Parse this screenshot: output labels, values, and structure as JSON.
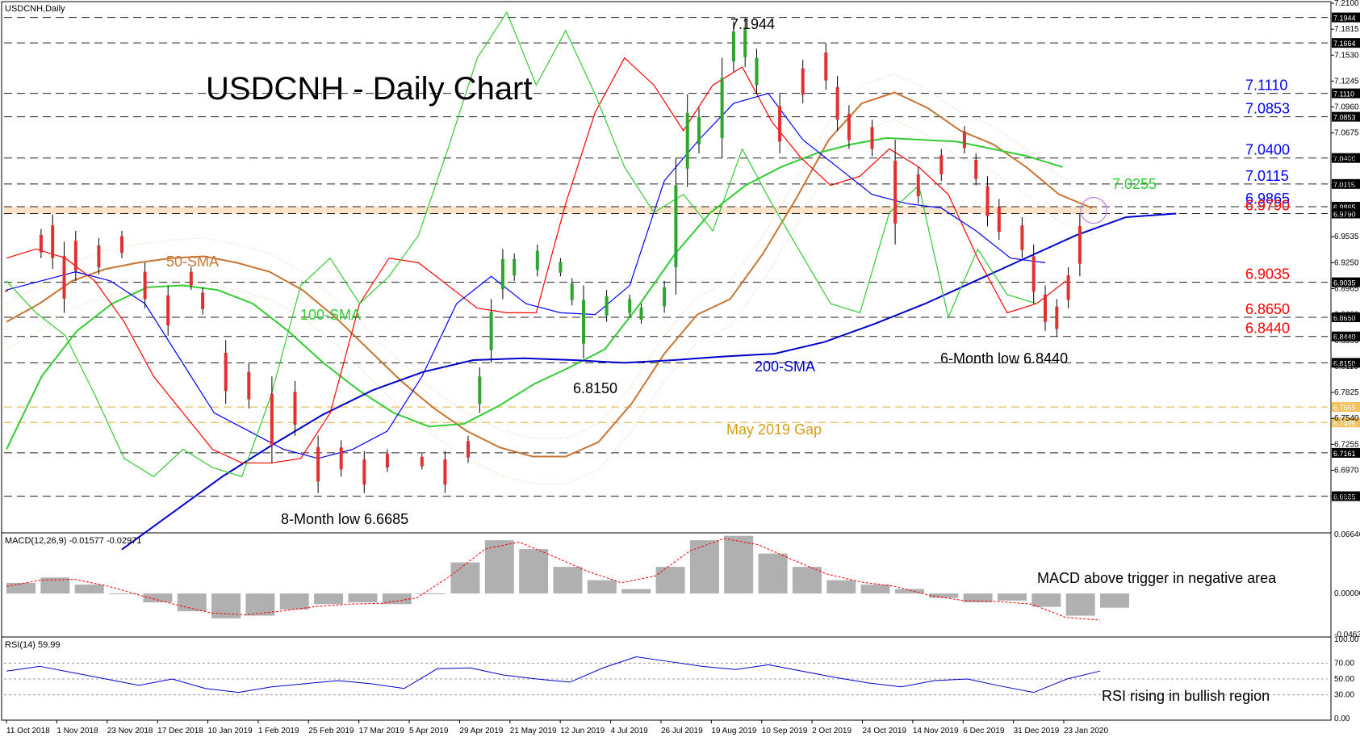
{
  "header": {
    "symbol": "USDCNH,Daily"
  },
  "chart_data": {
    "type": "candlestick",
    "title": "USDCNH - Daily Chart",
    "ylim": [
      6.63,
      7.21
    ],
    "y_ticks": [
      "7.2100",
      "7.1815",
      "7.1530",
      "7.1245",
      "7.0960",
      "7.0675",
      "7.0390",
      "7.0105",
      "6.9820",
      "6.9535",
      "6.9250",
      "6.8965",
      "6.8680",
      "6.8395",
      "6.8110",
      "6.7825",
      "6.7540",
      "6.7255",
      "6.6970",
      "6.6685"
    ],
    "x_ticks": [
      "11 Oct 2018",
      "1 Nov 2018",
      "23 Nov 2018",
      "17 Dec 2018",
      "10 Jan 2019",
      "1 Feb 2019",
      "25 Feb 2019",
      "17 Mar 2019",
      "5 Apr 2019",
      "29 Apr 2019",
      "21 May 2019",
      "12 Jun 2019",
      "4 Jul 2019",
      "26 Jul 2019",
      "19 Aug 2019",
      "10 Sep 2019",
      "2 Oct 2019",
      "24 Oct 2019",
      "14 Nov 2019",
      "6 Dec 2019",
      "31 Dec 2019",
      "23 Jan 2020"
    ],
    "levels": [
      {
        "value": 7.1944,
        "tag": "7.1944"
      },
      {
        "value": 7.1664,
        "tag": "7.1664"
      },
      {
        "value": 7.111,
        "tag": "7.1110",
        "label": "7.1110",
        "color": "#0000ff"
      },
      {
        "value": 7.0853,
        "tag": "7.0853",
        "label": "7.0853",
        "color": "#0000ff"
      },
      {
        "value": 7.04,
        "tag": "7.0400",
        "label": "7.0400",
        "color": "#0000ff"
      },
      {
        "value": 7.0115,
        "tag": "7.0115",
        "label": "7.0115",
        "color": "#0000ff"
      },
      {
        "value": 6.9865,
        "tag": "6.9865",
        "label": "6.9865",
        "color": "#0000ff"
      },
      {
        "value": 6.979,
        "tag": "6.9790",
        "label": "6.9790",
        "color": "#ff0000"
      },
      {
        "value": 6.9035,
        "tag": "6.9035",
        "label": "6.9035",
        "color": "#ff0000"
      },
      {
        "value": 6.865,
        "tag": "6.8650",
        "label": "6.8650",
        "color": "#ff0000"
      },
      {
        "value": 6.844,
        "tag": "6.8440",
        "label": "6.8440",
        "color": "#ff0000"
      },
      {
        "value": 6.815,
        "tag": "6.8150"
      },
      {
        "value": 6.7665,
        "tag": "6.7665",
        "gap": true
      },
      {
        "value": 6.7495,
        "tag": "6.7495",
        "gap": true
      },
      {
        "value": 6.7161,
        "tag": "6.7161"
      },
      {
        "value": 6.6685,
        "tag": "6.6685"
      }
    ],
    "zone": [
      6.979,
      6.9865
    ],
    "gap_label": "May 2019 Gap",
    "annotations": [
      {
        "text": "7.1944",
        "x": 56,
        "y": 7.203
      },
      {
        "text": "8-Month low 6.6685",
        "x": 24,
        "y": 6.65
      },
      {
        "text": "6.8150",
        "x": 50,
        "y": 6.827
      },
      {
        "text": "6-Month low 6.8440",
        "x": 85,
        "y": 6.832
      },
      {
        "text": "7.0255",
        "x": 101,
        "y": 7.025,
        "color": "#33cc33"
      },
      {
        "text": "50-SMA",
        "x": 14.5,
        "y": 6.95,
        "color": "#c87533"
      },
      {
        "text": "100-SMA",
        "x": 26,
        "y": 6.88,
        "color": "#33cc33"
      },
      {
        "text": "200-SMA",
        "x": 68,
        "y": 6.825,
        "color": "#0000cc"
      }
    ],
    "price": [
      {
        "x": 0,
        "h": 6.895,
        "l": 6.893
      },
      {
        "x": 3,
        "h": 6.962,
        "l": 6.93
      },
      {
        "x": 4,
        "h": 6.978,
        "l": 6.918
      },
      {
        "x": 5,
        "h": 6.948,
        "l": 6.87
      },
      {
        "x": 6,
        "h": 6.96,
        "l": 6.905
      },
      {
        "x": 8,
        "h": 6.952,
        "l": 6.912
      },
      {
        "x": 10,
        "h": 6.96,
        "l": 6.93
      },
      {
        "x": 12,
        "h": 6.925,
        "l": 6.875
      },
      {
        "x": 14,
        "h": 6.9,
        "l": 6.845
      },
      {
        "x": 16,
        "h": 6.92,
        "l": 6.895
      },
      {
        "x": 17,
        "h": 6.898,
        "l": 6.868
      },
      {
        "x": 19,
        "h": 6.84,
        "l": 6.77
      },
      {
        "x": 21,
        "h": 6.815,
        "l": 6.765
      },
      {
        "x": 23,
        "h": 6.8,
        "l": 6.705
      },
      {
        "x": 25,
        "h": 6.795,
        "l": 6.735
      },
      {
        "x": 27,
        "h": 6.735,
        "l": 6.672
      },
      {
        "x": 29,
        "h": 6.73,
        "l": 6.69
      },
      {
        "x": 31,
        "h": 6.718,
        "l": 6.672
      },
      {
        "x": 33,
        "h": 6.72,
        "l": 6.695
      },
      {
        "x": 36,
        "h": 6.715,
        "l": 6.698
      },
      {
        "x": 38,
        "h": 6.718,
        "l": 6.672
      },
      {
        "x": 40,
        "h": 6.735,
        "l": 6.705
      },
      {
        "x": 41,
        "h": 6.81,
        "l": 6.76
      },
      {
        "x": 42,
        "h": 6.885,
        "l": 6.815
      },
      {
        "x": 43,
        "h": 6.94,
        "l": 6.885
      },
      {
        "x": 44,
        "h": 6.935,
        "l": 6.905
      },
      {
        "x": 46,
        "h": 6.945,
        "l": 6.91
      },
      {
        "x": 48,
        "h": 6.93,
        "l": 6.91
      },
      {
        "x": 49,
        "h": 6.908,
        "l": 6.878
      },
      {
        "x": 50,
        "h": 6.9,
        "l": 6.82
      },
      {
        "x": 52,
        "h": 6.895,
        "l": 6.86
      },
      {
        "x": 54,
        "h": 6.89,
        "l": 6.865
      },
      {
        "x": 55,
        "h": 6.88,
        "l": 6.858
      },
      {
        "x": 57,
        "h": 6.905,
        "l": 6.87
      },
      {
        "x": 58,
        "h": 7.04,
        "l": 6.89
      },
      {
        "x": 59,
        "h": 7.11,
        "l": 7.008
      },
      {
        "x": 60,
        "h": 7.095,
        "l": 7.045
      },
      {
        "x": 62,
        "h": 7.15,
        "l": 7.04
      },
      {
        "x": 63,
        "h": 7.19,
        "l": 7.135
      },
      {
        "x": 64,
        "h": 7.194,
        "l": 7.14
      },
      {
        "x": 65,
        "h": 7.16,
        "l": 7.11
      },
      {
        "x": 67,
        "h": 7.11,
        "l": 7.045
      },
      {
        "x": 69,
        "h": 7.148,
        "l": 7.1
      },
      {
        "x": 71,
        "h": 7.166,
        "l": 7.115
      },
      {
        "x": 72,
        "h": 7.13,
        "l": 7.07
      },
      {
        "x": 73,
        "h": 7.098,
        "l": 7.05
      },
      {
        "x": 75,
        "h": 7.082,
        "l": 7.042
      },
      {
        "x": 77,
        "h": 7.06,
        "l": 6.945
      },
      {
        "x": 79,
        "h": 7.03,
        "l": 6.99
      },
      {
        "x": 81,
        "h": 7.05,
        "l": 7.015
      },
      {
        "x": 83,
        "h": 7.075,
        "l": 7.045
      },
      {
        "x": 84,
        "h": 7.045,
        "l": 7.01
      },
      {
        "x": 85,
        "h": 7.02,
        "l": 6.965
      },
      {
        "x": 86,
        "h": 6.995,
        "l": 6.95
      },
      {
        "x": 88,
        "h": 6.975,
        "l": 6.93
      },
      {
        "x": 89,
        "h": 6.945,
        "l": 6.88
      },
      {
        "x": 90,
        "h": 6.9,
        "l": 6.85
      },
      {
        "x": 91,
        "h": 6.885,
        "l": 6.844
      },
      {
        "x": 92,
        "h": 6.92,
        "l": 6.875
      },
      {
        "x": 93,
        "h": 6.979,
        "l": 6.91
      }
    ],
    "series": [
      {
        "name": "50-SMA",
        "color": "#c87533",
        "values": [
          6.86,
          6.88,
          6.905,
          6.918,
          6.925,
          6.93,
          6.932,
          6.925,
          6.915,
          6.895,
          6.865,
          6.83,
          6.795,
          6.765,
          6.74,
          6.722,
          6.712,
          6.712,
          6.728,
          6.77,
          6.825,
          6.868,
          6.885,
          6.935,
          6.995,
          7.06,
          7.1,
          7.112,
          7.095,
          7.07,
          7.055,
          7.03,
          7.0,
          6.985
        ]
      },
      {
        "name": "100-SMA",
        "color": "#33cc33",
        "values": [
          6.72,
          6.8,
          6.85,
          6.88,
          6.898,
          6.9,
          6.895,
          6.88,
          6.85,
          6.815,
          6.785,
          6.76,
          6.745,
          6.748,
          6.768,
          6.792,
          6.81,
          6.83,
          6.88,
          6.935,
          6.98,
          7.01,
          7.03,
          7.045,
          7.055,
          7.062,
          7.06,
          7.058,
          7.05,
          7.042,
          7.03
        ]
      },
      {
        "name": "200-SMA",
        "color": "#0000cc",
        "values": [
          6.61,
          6.65,
          6.69,
          6.725,
          6.758,
          6.785,
          6.805,
          6.818,
          6.82,
          6.818,
          6.815,
          6.818,
          6.822,
          6.825,
          6.838,
          6.858,
          6.88,
          6.905,
          6.93,
          6.955,
          6.975,
          6.979
        ]
      },
      {
        "name": "tenkan",
        "color": "#ff0000",
        "values": [
          6.93,
          6.94,
          6.93,
          6.905,
          6.86,
          6.8,
          6.76,
          6.72,
          6.705,
          6.705,
          6.71,
          6.76,
          6.88,
          6.93,
          6.925,
          6.9,
          6.875,
          6.87,
          6.87,
          6.99,
          7.09,
          7.15,
          7.12,
          7.07,
          7.12,
          7.14,
          7.08,
          7.04,
          7.01,
          7.02,
          7.05,
          7.03,
          7.0,
          6.93,
          6.87,
          6.88,
          6.905
        ]
      },
      {
        "name": "kijun",
        "color": "#0000ff",
        "values": [
          6.895,
          6.905,
          6.915,
          6.905,
          6.88,
          6.82,
          6.76,
          6.74,
          6.72,
          6.71,
          6.72,
          6.74,
          6.8,
          6.88,
          6.91,
          6.88,
          6.87,
          6.868,
          6.9,
          7.015,
          7.06,
          7.1,
          7.111,
          7.06,
          7.03,
          7.0,
          6.99,
          6.985,
          6.96,
          6.93,
          6.925
        ]
      },
      {
        "name": "chikou",
        "color": "#33cc33",
        "values": [
          6.905,
          6.87,
          6.845,
          6.78,
          6.71,
          6.69,
          6.72,
          6.7,
          6.69,
          6.78,
          6.9,
          6.93,
          6.88,
          6.91,
          6.955,
          7.05,
          7.15,
          7.2,
          7.12,
          7.18,
          7.11,
          7.03,
          6.98,
          7.0,
          6.96,
          7.05,
          6.99,
          6.935,
          6.88,
          6.87,
          6.98,
          7.01,
          6.865,
          6.94,
          6.89,
          6.88
        ]
      }
    ],
    "macd": {
      "label": "MACD(12,26,9) -0.01577 -0.02971",
      "note": "MACD above trigger in negative area",
      "ticks": [
        "0.066469",
        "0.000000",
        "-0.046341"
      ],
      "ylim": [
        -0.0463,
        0.0665
      ],
      "hist": [
        0.012,
        0.018,
        0.01,
        0.0,
        -0.01,
        -0.02,
        -0.028,
        -0.025,
        -0.018,
        -0.012,
        -0.01,
        -0.012,
        0.0,
        0.035,
        0.06,
        0.05,
        0.03,
        0.015,
        0.005,
        0.03,
        0.06,
        0.065,
        0.045,
        0.03,
        0.015,
        0.01,
        0.005,
        -0.005,
        -0.01,
        -0.008,
        -0.015,
        -0.025,
        -0.016
      ],
      "signal": [
        0.008,
        0.015,
        0.016,
        0.008,
        -0.003,
        -0.013,
        -0.022,
        -0.024,
        -0.02,
        -0.015,
        -0.012,
        -0.011,
        -0.005,
        0.02,
        0.05,
        0.058,
        0.042,
        0.025,
        0.012,
        0.02,
        0.048,
        0.062,
        0.055,
        0.038,
        0.022,
        0.013,
        0.008,
        -0.002,
        -0.008,
        -0.009,
        -0.012,
        -0.027,
        -0.03
      ]
    },
    "rsi": {
      "label": "RSI(14) 59.99",
      "note": "RSI rising in bullish region",
      "ticks": [
        "100.00",
        "70.00",
        "50.00",
        "30.00",
        "0.00"
      ],
      "levels": [
        70,
        50,
        30
      ],
      "values": [
        60,
        66,
        58,
        50,
        42,
        50,
        38,
        33,
        40,
        44,
        48,
        44,
        38,
        63,
        64,
        55,
        50,
        46,
        64,
        78,
        72,
        66,
        62,
        68,
        60,
        52,
        45,
        40,
        48,
        50,
        41,
        33,
        50,
        60
      ]
    }
  }
}
